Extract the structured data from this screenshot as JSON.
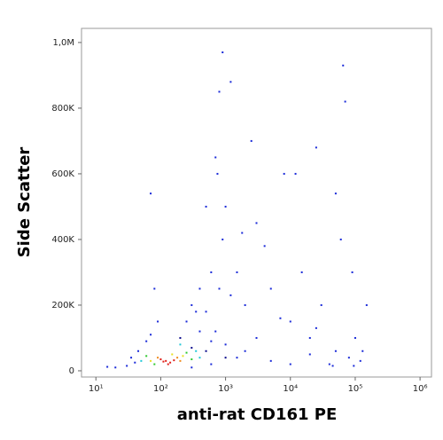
{
  "chart_data": {
    "type": "scatter",
    "x_label": "anti-rat CD161 PE",
    "y_label": "Side Scatter",
    "x_scale": "log",
    "xlim": [
      6,
      1500000
    ],
    "xticks": [
      {
        "value": 10,
        "label": "10¹"
      },
      {
        "value": 100,
        "label": "10²"
      },
      {
        "value": 1000,
        "label": "10³"
      },
      {
        "value": 10000,
        "label": "10⁴"
      },
      {
        "value": 100000,
        "label": "10⁵"
      },
      {
        "value": 1000000,
        "label": "10⁶"
      }
    ],
    "ylim": [
      -19000,
      1043000
    ],
    "yticks": [
      0,
      {
        "value": 200000,
        "label": "200K"
      },
      {
        "value": 400000,
        "label": "400K"
      },
      {
        "value": 600000,
        "label": "600K"
      },
      {
        "value": 800000,
        "label": "800K"
      },
      {
        "value": 1000000,
        "label": "1,0M"
      }
    ],
    "x": [
      30,
      40,
      20,
      15,
      45,
      60,
      35,
      70,
      90,
      80,
      250,
      300,
      500,
      700,
      800,
      600,
      900,
      1000,
      700,
      750,
      800,
      900,
      1200,
      1500,
      2000,
      2500,
      3000,
      5000,
      8000,
      10000,
      15000,
      20000,
      25000,
      30000,
      50000,
      60000,
      65000,
      70000,
      90000,
      100000,
      150000,
      120000,
      80000,
      40000,
      20000,
      5000,
      2000,
      1000,
      3000,
      600,
      400,
      1500,
      10000,
      50000,
      70,
      500,
      1800,
      4000,
      12000,
      400,
      350,
      1200,
      7000,
      25000,
      45000,
      95000,
      130000,
      300,
      600,
      200,
      500,
      1000,
      300,
      50,
      350,
      400,
      200,
      60,
      250,
      80,
      300,
      70,
      220,
      150,
      90,
      180,
      200,
      120,
      140,
      100,
      160,
      130,
      110
    ],
    "values": [
      15000,
      25000,
      10000,
      12000,
      60000,
      90000,
      40000,
      110000,
      150000,
      250000,
      150000,
      200000,
      180000,
      120000,
      250000,
      300000,
      400000,
      500000,
      650000,
      600000,
      850000,
      970000,
      880000,
      300000,
      200000,
      700000,
      450000,
      250000,
      600000,
      150000,
      300000,
      100000,
      680000,
      200000,
      540000,
      400000,
      930000,
      820000,
      300000,
      100000,
      200000,
      30000,
      40000,
      20000,
      50000,
      30000,
      60000,
      80000,
      100000,
      90000,
      120000,
      40000,
      20000,
      60000,
      540000,
      500000,
      420000,
      380000,
      600000,
      250000,
      180000,
      230000,
      160000,
      130000,
      15000,
      15000,
      60000,
      10000,
      20000,
      100000,
      60000,
      40000,
      70000,
      30000,
      60000,
      40000,
      80000,
      45000,
      55000,
      20000,
      35000,
      30000,
      45000,
      50000,
      40000,
      40000,
      30000,
      30000,
      25000,
      35000,
      32000,
      20000,
      28000
    ],
    "colors": [
      "#1a2ad8",
      "#1a2ad8",
      "#1a2ad8",
      "#1a2ad8",
      "#1a2ad8",
      "#1a2ad8",
      "#1a2ad8",
      "#1a2ad8",
      "#1a2ad8",
      "#1a2ad8",
      "#1a2ad8",
      "#1a2ad8",
      "#1a2ad8",
      "#1a2ad8",
      "#1a2ad8",
      "#1a2ad8",
      "#1a2ad8",
      "#1a2ad8",
      "#1a2ad8",
      "#1a2ad8",
      "#1a2ad8",
      "#1a2ad8",
      "#1a2ad8",
      "#1a2ad8",
      "#1a2ad8",
      "#1a2ad8",
      "#1a2ad8",
      "#1a2ad8",
      "#1a2ad8",
      "#1a2ad8",
      "#1a2ad8",
      "#1a2ad8",
      "#1a2ad8",
      "#1a2ad8",
      "#1a2ad8",
      "#1a2ad8",
      "#1a2ad8",
      "#1a2ad8",
      "#1a2ad8",
      "#1a2ad8",
      "#1a2ad8",
      "#1a2ad8",
      "#1a2ad8",
      "#1a2ad8",
      "#1a2ad8",
      "#1a2ad8",
      "#1a2ad8",
      "#1a2ad8",
      "#1a2ad8",
      "#1a2ad8",
      "#1a2ad8",
      "#1a2ad8",
      "#1a2ad8",
      "#1a2ad8",
      "#1a2ad8",
      "#1a2ad8",
      "#1a2ad8",
      "#1a2ad8",
      "#1a2ad8",
      "#1a2ad8",
      "#1a2ad8",
      "#1a2ad8",
      "#1a2ad8",
      "#1a2ad8",
      "#1a2ad8",
      "#1a2ad8",
      "#1a2ad8",
      "#1a2ad8",
      "#1a2ad8",
      "#0a0a8a",
      "#0a0a8a",
      "#0a0a8a",
      "#0a0a8a",
      "#20c8d8",
      "#20c8d8",
      "#20c8d8",
      "#20c8d8",
      "#2ec82e",
      "#2ec82e",
      "#2ec82e",
      "#2ec82e",
      "#e8e020",
      "#e8e020",
      "#e8e020",
      "#f08a1a",
      "#f08a1a",
      "#f08a1a",
      "#e0201a",
      "#e0201a",
      "#e0201a",
      "#e0201a",
      "#e0201a",
      "#e0201a"
    ],
    "grid": false
  }
}
